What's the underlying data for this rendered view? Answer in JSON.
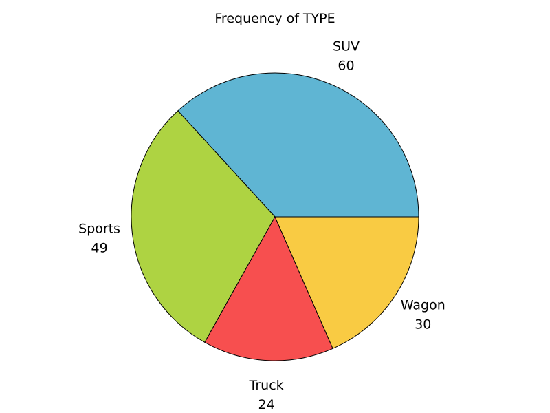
{
  "chart_data": {
    "type": "pie",
    "title": "Frequency of TYPE",
    "slices": [
      {
        "label": "SUV",
        "value": 60,
        "color": "#5fb5d3"
      },
      {
        "label": "Sports",
        "value": 49,
        "color": "#aed342"
      },
      {
        "label": "Truck",
        "value": 24,
        "color": "#f74f4f"
      },
      {
        "label": "Wagon",
        "value": 30,
        "color": "#f9cb43"
      }
    ],
    "start_angle_deg": 0,
    "direction": "counterclockwise"
  }
}
